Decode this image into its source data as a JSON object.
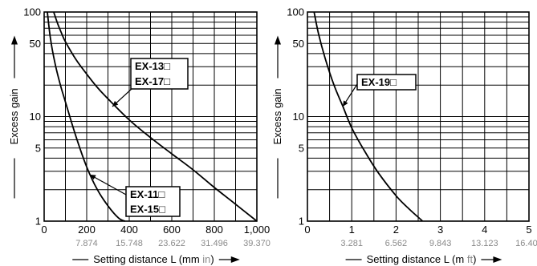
{
  "chart_data": [
    {
      "type": "line",
      "ylabel": "Excess gain",
      "xlabel_main": "Setting distance L (mm ",
      "xlabel_unit": "in",
      "xlabel_close": ")",
      "yscale": "log",
      "ylim": [
        1,
        100
      ],
      "xlim": [
        0,
        1000
      ],
      "grid": true,
      "yticks": [
        1,
        5,
        10,
        50,
        100
      ],
      "ytick_labels": [
        "1",
        "5",
        "10",
        "50",
        "100"
      ],
      "xticks": [
        0,
        200,
        400,
        600,
        800,
        1000
      ],
      "xtick_labels": [
        "0",
        "200",
        "400",
        "600",
        "800",
        "1,000"
      ],
      "xtick_labels_secondary": [
        "7.874",
        "15.748",
        "23.622",
        "31.496",
        "39.370"
      ],
      "series": [
        {
          "name": "EX-13□ / EX-17□",
          "label_lines": [
            "EX-13□",
            "EX-17□"
          ],
          "x": [
            45,
            60,
            80,
            100,
            150,
            200,
            250,
            300,
            400,
            500,
            600,
            700,
            800,
            900,
            1000
          ],
          "y": [
            100,
            81,
            64,
            52,
            35,
            25.5,
            19,
            14.8,
            9.3,
            6.3,
            4.4,
            3.1,
            2.1,
            1.45,
            1.0
          ]
        },
        {
          "name": "EX-11□ / EX-15□",
          "label_lines": [
            "EX-11□",
            "EX-15□"
          ],
          "x": [
            15,
            30,
            50,
            75,
            100,
            150,
            200,
            250,
            300,
            350,
            380
          ],
          "y": [
            100,
            55,
            33,
            20.5,
            13.8,
            6.4,
            3.3,
            2.0,
            1.4,
            1.07,
            1.0
          ]
        }
      ]
    },
    {
      "type": "line",
      "ylabel": "Excess gain",
      "xlabel_main": "Setting distance L (m ",
      "xlabel_unit": "ft",
      "xlabel_close": ")",
      "yscale": "log",
      "ylim": [
        1,
        100
      ],
      "xlim": [
        0,
        5
      ],
      "grid": true,
      "yticks": [
        1,
        5,
        10,
        50,
        100
      ],
      "ytick_labels": [
        "1",
        "5",
        "10",
        "50",
        "100"
      ],
      "xticks": [
        0,
        1,
        2,
        3,
        4,
        5
      ],
      "xtick_labels": [
        "0",
        "1",
        "2",
        "3",
        "4",
        "5"
      ],
      "xtick_labels_secondary": [
        "3.281",
        "6.562",
        "9.843",
        "13.123",
        "16.404"
      ],
      "series": [
        {
          "name": "EX-19□",
          "label_lines": [
            "EX-19□"
          ],
          "x": [
            0.15,
            0.25,
            0.4,
            0.6,
            0.8,
            1.0,
            1.3,
            1.6,
            2.0,
            2.3,
            2.6
          ],
          "y": [
            100,
            62,
            36,
            20,
            12.5,
            7.8,
            4.6,
            2.9,
            1.75,
            1.3,
            1.0
          ]
        }
      ]
    }
  ]
}
